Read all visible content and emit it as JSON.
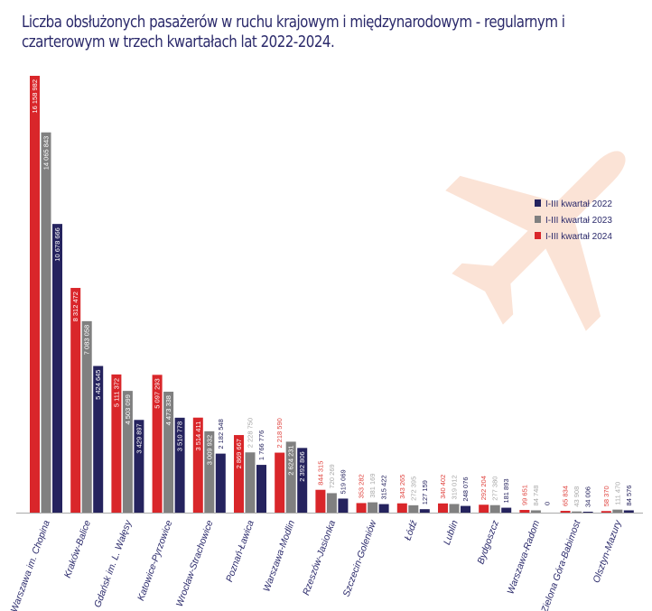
{
  "chart_data": {
    "type": "bar",
    "title": "Liczba obsłużonych pasażerów w ruchu krajowym i międzynarodowym - regularnym i czarterowym w trzech kwartałach lat 2022-2024.",
    "xlabel": "",
    "ylabel": "",
    "ylim": [
      0,
      16158982
    ],
    "grid": false,
    "legend_position": "right",
    "categories": [
      "Warszawa im. Chopina",
      "Kraków-Balice",
      "Gdańsk im. L. Wałęsy",
      "Katowice-Pyrzowice",
      "Wrocław-Strachowice",
      "Poznań-Ławica",
      "Warszawa-Modlin",
      "Rzeszów-Jasionka",
      "Szczecin-Goleniów",
      "Łódź",
      "Lublin",
      "Bydgoszcz",
      "Warszawa-Radom",
      "Zielona Góra-Babimost",
      "Olsztyn-Mazury"
    ],
    "series": [
      {
        "name": "I-III kwartał 2024",
        "color": "#d9262a",
        "values": [
          16158982,
          8312472,
          5111372,
          5097293,
          3514411,
          2869667,
          2218590,
          844315,
          353282,
          343265,
          340402,
          292204,
          99651,
          65834,
          58370
        ],
        "labels": [
          "16 158 982",
          "8 312 472",
          "5 111 372",
          "5 097 293",
          "3 514 411",
          "2 869 667",
          "2 218 590",
          "844 315",
          "353 282",
          "343 265",
          "340 402",
          "292 204",
          "99 651",
          "65 834",
          "58 370"
        ]
      },
      {
        "name": "I-III kwartał 2023",
        "color": "#808080",
        "values": [
          14065843,
          7083058,
          4503099,
          4473338,
          3009932,
          2228750,
          2624231,
          720269,
          381169,
          272395,
          319012,
          277380,
          84748,
          43908,
          111470
        ],
        "labels": [
          "14 065 843",
          "7 083 058",
          "4 503 099",
          "4 473 338",
          "3 009 932",
          "2 228 750",
          "2 624 231",
          "720 269",
          "381 169",
          "272 395",
          "319 012",
          "277 380",
          "84 748",
          "43 908",
          "111 470"
        ]
      },
      {
        "name": "I-III kwartał 2022",
        "color": "#25235e",
        "values": [
          10678666,
          5424645,
          3429897,
          3510778,
          2182548,
          1766776,
          2392806,
          519069,
          315422,
          127159,
          248076,
          181893,
          0,
          34006,
          84576
        ],
        "labels": [
          "10 678 666",
          "5 424 645",
          "3 429 897",
          "3 510 778",
          "2 182 548",
          "1 766 776",
          "2 392 806",
          "519 069",
          "315 422",
          "127 159",
          "248 076",
          "181 893",
          "0",
          "34 006",
          "84 576"
        ]
      }
    ],
    "legend_order": [
      "I-III kwartał 2022",
      "I-III kwartał 2023",
      "I-III kwartał 2024"
    ]
  },
  "decor": {
    "watermark_icon": "airplane-icon",
    "watermark_color": "#fbe3d6"
  }
}
